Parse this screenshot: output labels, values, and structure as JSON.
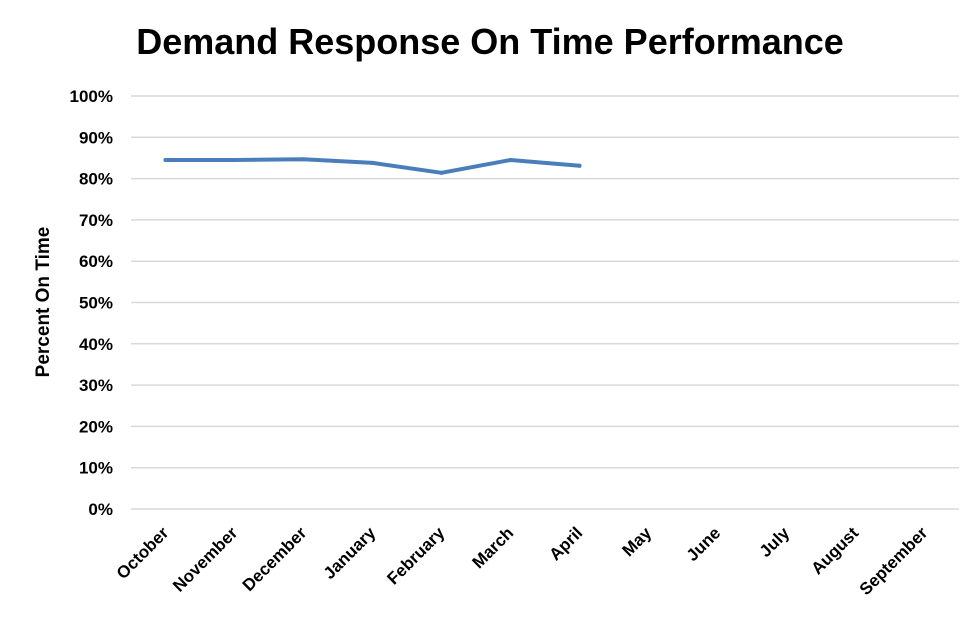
{
  "chart_data": {
    "type": "line",
    "title": "Demand Response On Time Performance",
    "ylabel": "Percent On Time",
    "xlabel": "",
    "categories": [
      "October",
      "November",
      "December",
      "January",
      "February",
      "March",
      "April",
      "May",
      "June",
      "July",
      "August",
      "September"
    ],
    "ylim": [
      0,
      100
    ],
    "yticks": [
      0,
      10,
      20,
      30,
      40,
      50,
      60,
      70,
      80,
      90,
      100
    ],
    "ytick_labels": [
      "0%",
      "10%",
      "20%",
      "30%",
      "40%",
      "50%",
      "60%",
      "70%",
      "80%",
      "90%",
      "100%"
    ],
    "grid": true,
    "legend": "none",
    "series": [
      {
        "values": [
          84.5,
          84.5,
          84.7,
          83.8,
          81.4,
          84.5,
          83.1,
          null,
          null,
          null,
          null,
          null
        ],
        "color": "#4a7ebb"
      }
    ]
  }
}
